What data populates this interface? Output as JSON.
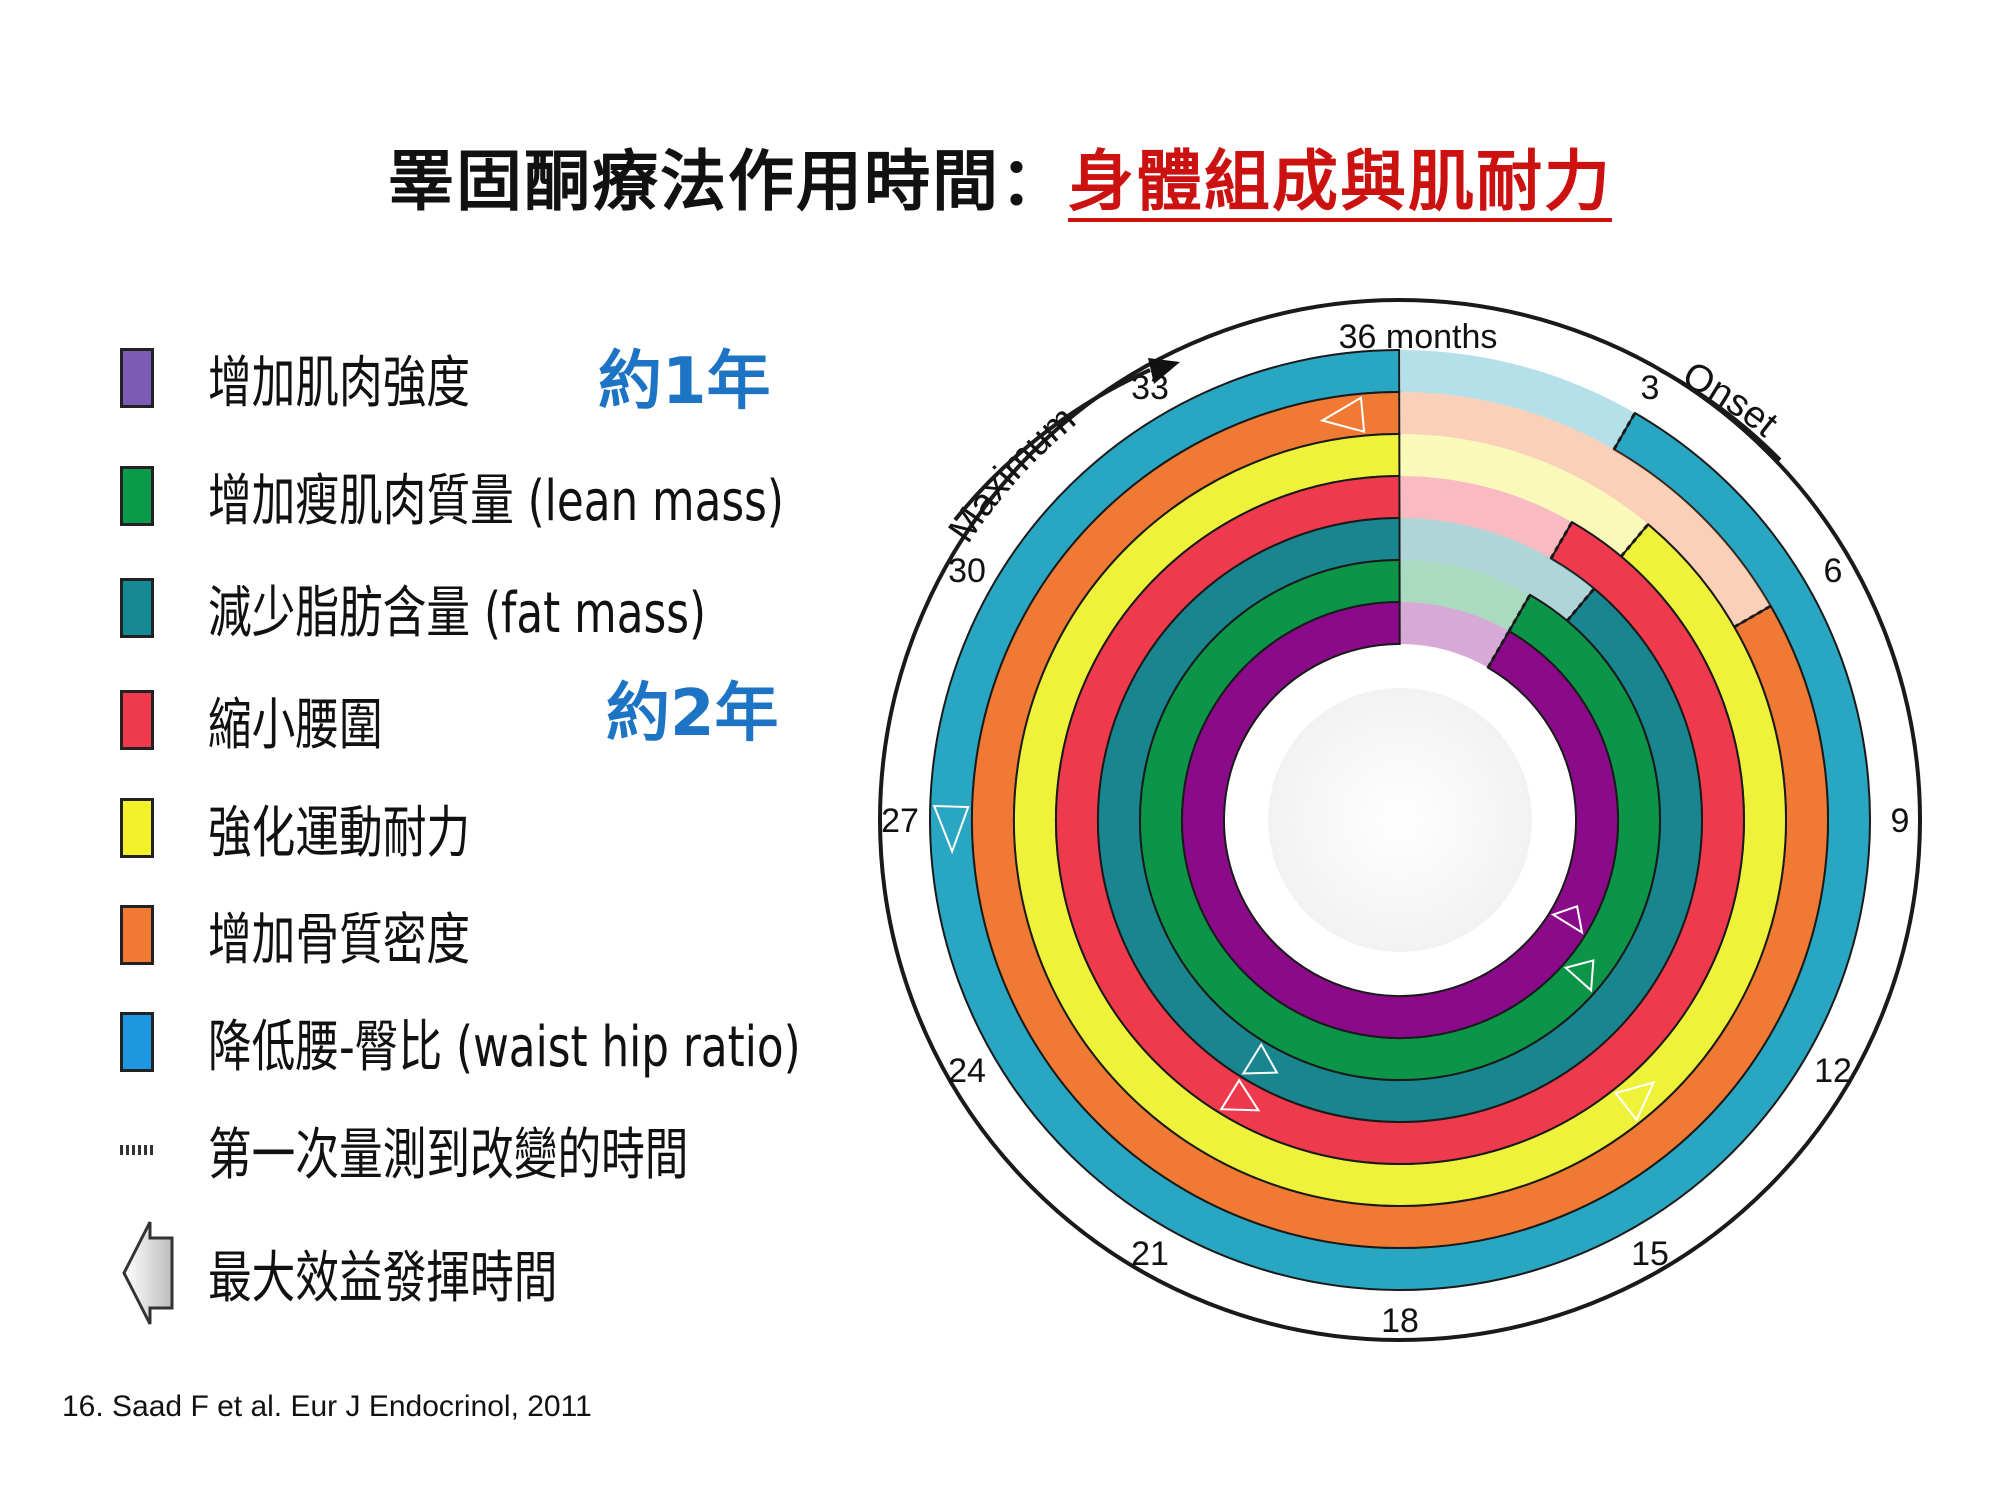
{
  "title": {
    "main": "睪固酮療法作用時間：",
    "highlight": "身體組成與肌耐力"
  },
  "legend": [
    {
      "label": "增加肌肉強度",
      "color": "#7b5bb5",
      "type": "swatch"
    },
    {
      "label": "增加瘦肌肉質量 (lean mass)",
      "color": "#0b9a4a",
      "type": "swatch"
    },
    {
      "label": "減少脂肪含量 (fat mass)",
      "color": "#168a94",
      "type": "swatch"
    },
    {
      "label": "縮小腰圍",
      "color": "#ee3a4c",
      "type": "swatch"
    },
    {
      "label": "強化運動耐力",
      "color": "#f3f22a",
      "type": "swatch"
    },
    {
      "label": "增加骨質密度",
      "color": "#f07a34",
      "type": "swatch"
    },
    {
      "label": "降低腰-臀比 (waist hip ratio)",
      "color": "#1d97e0",
      "type": "swatch"
    },
    {
      "label": "第一次量測到改變的時間",
      "type": "dash"
    },
    {
      "label": "最大效益發揮時間",
      "type": "arrow"
    }
  ],
  "notes": {
    "one_year": "約1年",
    "two_years": "約2年"
  },
  "citation": "16. Saad F et al. Eur J Endocrinol, 2011",
  "chart_data": {
    "type": "radial-timeline",
    "scale_max_label": "36 months",
    "ticks": [
      "3",
      "6",
      "9",
      "12",
      "15",
      "18",
      "21",
      "24",
      "27",
      "30",
      "33"
    ],
    "tick_values": [
      3,
      6,
      9,
      12,
      15,
      18,
      21,
      24,
      27,
      30,
      33
    ],
    "labels": {
      "onset": "Onset",
      "maximum": "Maximum"
    },
    "rings_outer_to_inner": [
      {
        "color": "#29a6c2",
        "onset_month": 3,
        "max_month": 27
      },
      {
        "color": "#f07a34",
        "onset_month": 6,
        "max_month": 36
      },
      {
        "color": "#eef23a",
        "onset_month": 4,
        "max_month": 14
      },
      {
        "color": "#ee3a4c",
        "onset_month": 3,
        "max_month": 21
      },
      {
        "color": "#19868f",
        "onset_month": 4,
        "max_month": 21
      },
      {
        "color": "#0c9448",
        "onset_month": 3,
        "max_month": 13
      },
      {
        "color": "#8a0a8a",
        "onset_month": 3,
        "max_month": 12
      }
    ]
  }
}
